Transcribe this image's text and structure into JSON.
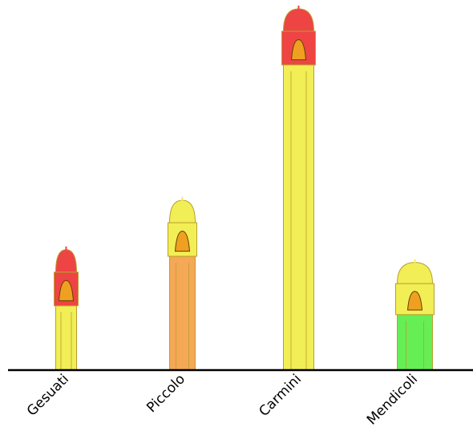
{
  "chart_data": {
    "type": "tower",
    "categories": [
      "Gesuati",
      "Piccolo",
      "Carmini",
      "Mendicoli"
    ],
    "values": [
      155,
      217,
      457,
      139
    ],
    "top_colors": [
      "#ee4444",
      "#f2ee55",
      "#ee4444",
      "#f2ee55"
    ],
    "body_colors": [
      "#f2ee55",
      "#f5a855",
      "#f2ee55",
      "#66ee55"
    ],
    "ylim": [
      0,
      460
    ]
  }
}
